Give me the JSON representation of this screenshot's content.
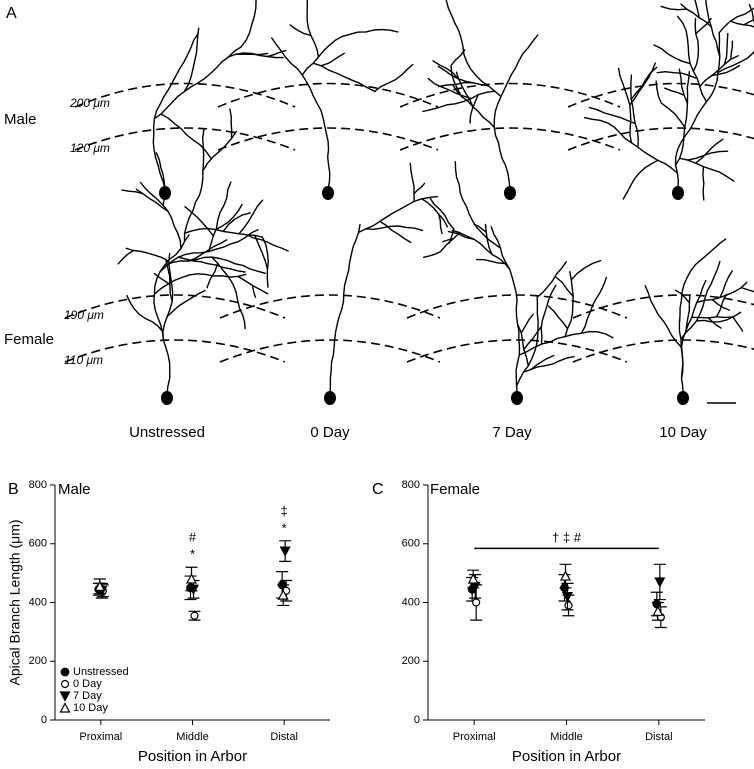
{
  "panel_label": "A",
  "rows": [
    "Male",
    "Female"
  ],
  "columns": [
    "Unstressed",
    "0 Day",
    "7 Day",
    "10 Day"
  ],
  "male_distances": [
    "200 μm",
    "120 μm"
  ],
  "female_distances": [
    "190 μm",
    "110 μm"
  ],
  "chart_data": [
    {
      "type": "errorbar",
      "panel": "B",
      "title": "Male",
      "y_label": "Apical Branch Length (μm)",
      "x_label": "Position in Arbor",
      "categories": [
        "Proximal",
        "Middle",
        "Distal"
      ],
      "ylim": [
        0,
        800
      ],
      "yticks": [
        0,
        200,
        400,
        600,
        800
      ],
      "legend": "lower left",
      "series": [
        {
          "name": "Unstressed",
          "marker": "filled-circle",
          "color": "#000000",
          "values": [
            445,
            450,
            460
          ],
          "errors": [
            20,
            40,
            45
          ]
        },
        {
          "name": "0 Day",
          "marker": "open-circle",
          "color": "#000000",
          "values": [
            440,
            355,
            440
          ],
          "errors": [
            20,
            15,
            35
          ]
        },
        {
          "name": "7 Day",
          "marker": "filled-down-triangle",
          "color": "#000000",
          "values": [
            440,
            445,
            575
          ],
          "errors": [
            25,
            30,
            35
          ]
        },
        {
          "name": "10 Day",
          "marker": "open-up-triangle",
          "color": "#000000",
          "values": [
            455,
            480,
            425
          ],
          "errors": [
            25,
            40,
            35
          ]
        }
      ],
      "annotations": [
        {
          "x": "Middle",
          "texts": [
            "#",
            "*"
          ]
        },
        {
          "x": "Distal",
          "texts": [
            "‡",
            "*"
          ]
        }
      ]
    },
    {
      "type": "errorbar",
      "panel": "C",
      "title": "Female",
      "x_label": "Position in Arbor",
      "categories": [
        "Proximal",
        "Middle",
        "Distal"
      ],
      "ylim": [
        0,
        800
      ],
      "yticks": [
        0,
        200,
        400,
        600,
        800
      ],
      "series": [
        {
          "name": "Unstressed",
          "marker": "filled-circle",
          "color": "#000000",
          "values": [
            445,
            450,
            395
          ],
          "errors": [
            40,
            45,
            40
          ]
        },
        {
          "name": "0 Day",
          "marker": "open-circle",
          "color": "#000000",
          "values": [
            400,
            390,
            350
          ],
          "errors": [
            60,
            35,
            35
          ]
        },
        {
          "name": "7 Day",
          "marker": "filled-down-triangle",
          "color": "#000000",
          "values": [
            455,
            420,
            470
          ],
          "errors": [
            40,
            45,
            60
          ]
        },
        {
          "name": "10 Day",
          "marker": "open-up-triangle",
          "color": "#000000",
          "values": [
            480,
            490,
            370
          ],
          "errors": [
            30,
            40,
            30
          ]
        }
      ],
      "brackets": [
        {
          "from": "Proximal",
          "to": "Distal",
          "text": "† ‡ #"
        }
      ]
    }
  ]
}
